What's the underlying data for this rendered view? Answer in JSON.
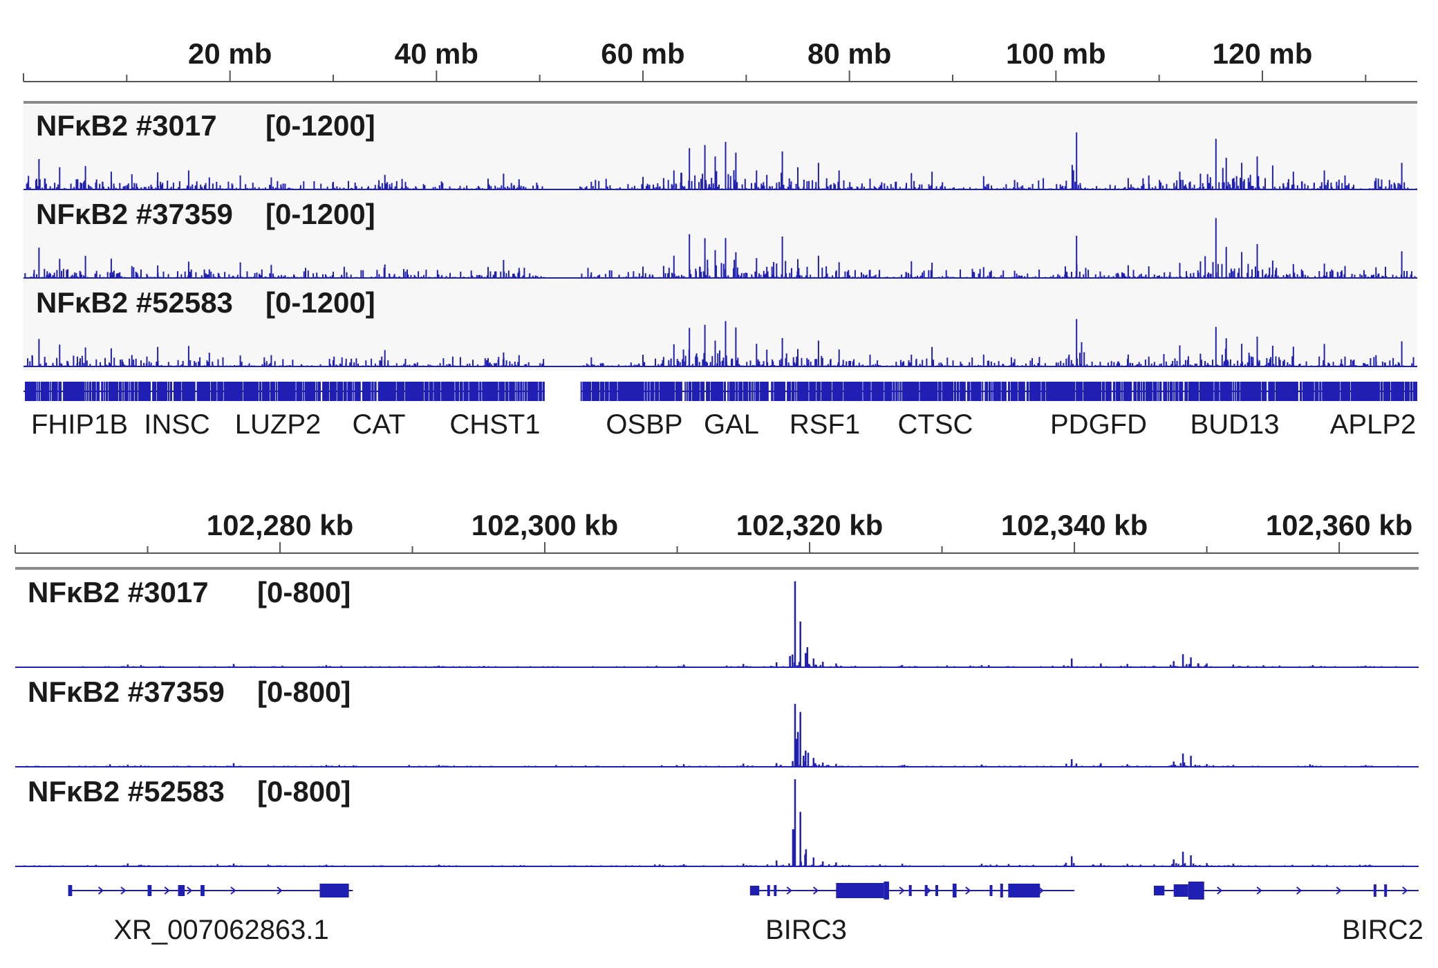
{
  "colors": {
    "signal": "#1f1fb4",
    "track_bg": "#f7f7f7",
    "axis": "#555555",
    "text": "#1a1a1a"
  },
  "chart_data": [
    {
      "type": "area",
      "panel": "genome-wide",
      "ruler_labels": [
        "20 mb",
        "40 mb",
        "60 mb",
        "80 mb",
        "100 mb",
        "120 mb"
      ],
      "ruler_values_mb": [
        20,
        40,
        60,
        80,
        100,
        120
      ],
      "x_range_mb": [
        0,
        135
      ],
      "ylim": [
        0,
        1200
      ],
      "tracks": [
        {
          "name": "NFκB2 #3017",
          "range_label": "[0-1200]"
        },
        {
          "name": "NFκB2 #37359",
          "range_label": "[0-1200]"
        },
        {
          "name": "NFκB2 #52583",
          "range_label": "[0-1200]"
        }
      ],
      "peaks_mb": [
        [
          1.5,
          480
        ],
        [
          3.5,
          350
        ],
        [
          6,
          370
        ],
        [
          8.5,
          280
        ],
        [
          10.5,
          240
        ],
        [
          13,
          270
        ],
        [
          16,
          300
        ],
        [
          18,
          190
        ],
        [
          21,
          220
        ],
        [
          24,
          190
        ],
        [
          30,
          120
        ],
        [
          35,
          230
        ],
        [
          37,
          120
        ],
        [
          45,
          170
        ],
        [
          46.5,
          250
        ],
        [
          48,
          160
        ],
        [
          55,
          120
        ],
        [
          60,
          200
        ],
        [
          62,
          180
        ],
        [
          63,
          300
        ],
        [
          64.5,
          650
        ],
        [
          66,
          700
        ],
        [
          67,
          520
        ],
        [
          68,
          750
        ],
        [
          69,
          580
        ],
        [
          71,
          300
        ],
        [
          72,
          230
        ],
        [
          73.5,
          600
        ],
        [
          75,
          350
        ],
        [
          77,
          420
        ],
        [
          79,
          300
        ],
        [
          82,
          170
        ],
        [
          86,
          260
        ],
        [
          88,
          280
        ],
        [
          93,
          210
        ],
        [
          96,
          150
        ],
        [
          101,
          140
        ],
        [
          102,
          900
        ],
        [
          107,
          180
        ],
        [
          109,
          220
        ],
        [
          112,
          280
        ],
        [
          114,
          250
        ],
        [
          115.5,
          800
        ],
        [
          116.5,
          500
        ],
        [
          118,
          420
        ],
        [
          119.5,
          520
        ],
        [
          121,
          380
        ],
        [
          123,
          280
        ],
        [
          126,
          300
        ],
        [
          128,
          220
        ],
        [
          131,
          180
        ],
        [
          133.5,
          420
        ]
      ],
      "genes": [
        {
          "label": "FHIP1B",
          "mb": 5.5
        },
        {
          "label": "INSC",
          "mb": 15
        },
        {
          "label": "LUZP2",
          "mb": 24.5
        },
        {
          "label": "CAT",
          "mb": 34.5
        },
        {
          "label": "CHST1",
          "mb": 45.5
        },
        {
          "label": "OSBP",
          "mb": 60
        },
        {
          "label": "GAL",
          "mb": 68.5
        },
        {
          "label": "RSF1",
          "mb": 77
        },
        {
          "label": "CTSC",
          "mb": 88
        },
        {
          "label": "PDGFD",
          "mb": 103
        },
        {
          "label": "BUD13",
          "mb": 116.5
        },
        {
          "label": "APLP2",
          "mb": 130
        }
      ]
    },
    {
      "type": "area",
      "panel": "zoomed-locus",
      "ruler_labels": [
        "102,280 kb",
        "102,300 kb",
        "102,320 kb",
        "102,340 kb",
        "102,360 kb"
      ],
      "ruler_values_kb": [
        102280,
        102300,
        102320,
        102340,
        102360
      ],
      "x_range_kb": [
        102260,
        102366
      ],
      "ylim": [
        0,
        800
      ],
      "tracks": [
        {
          "name": "NFκB2 #3017",
          "range_label": "[0-800]"
        },
        {
          "name": "NFκB2 #37359",
          "range_label": "[0-800]"
        },
        {
          "name": "NFκB2 #52583",
          "range_label": "[0-800]"
        }
      ],
      "peaks_kb": [
        [
          102268.5,
          25
        ],
        [
          102269.5,
          20
        ],
        [
          102276.5,
          30
        ],
        [
          102283.5,
          20
        ],
        [
          102292,
          15
        ],
        [
          102310.5,
          25
        ],
        [
          102315,
          30
        ],
        [
          102317.5,
          45
        ],
        [
          102318.9,
          790
        ],
        [
          102319.3,
          420
        ],
        [
          102319.7,
          130
        ],
        [
          102320.3,
          80
        ],
        [
          102321,
          50
        ],
        [
          102322,
          35
        ],
        [
          102327,
          20
        ],
        [
          102333,
          20
        ],
        [
          102339.8,
          80
        ],
        [
          102342,
          35
        ],
        [
          102344,
          30
        ],
        [
          102347.5,
          55
        ],
        [
          102348.2,
          120
        ],
        [
          102348.8,
          90
        ],
        [
          102350,
          35
        ],
        [
          102352,
          25
        ],
        [
          102358,
          20
        ],
        [
          102362,
          15
        ]
      ],
      "genes": [
        {
          "label": "XR_007062863.1",
          "kb": 102275
        },
        {
          "label": "BIRC3",
          "kb": 102319.5
        },
        {
          "label": "BIRC2",
          "kb": 102363
        }
      ]
    }
  ]
}
